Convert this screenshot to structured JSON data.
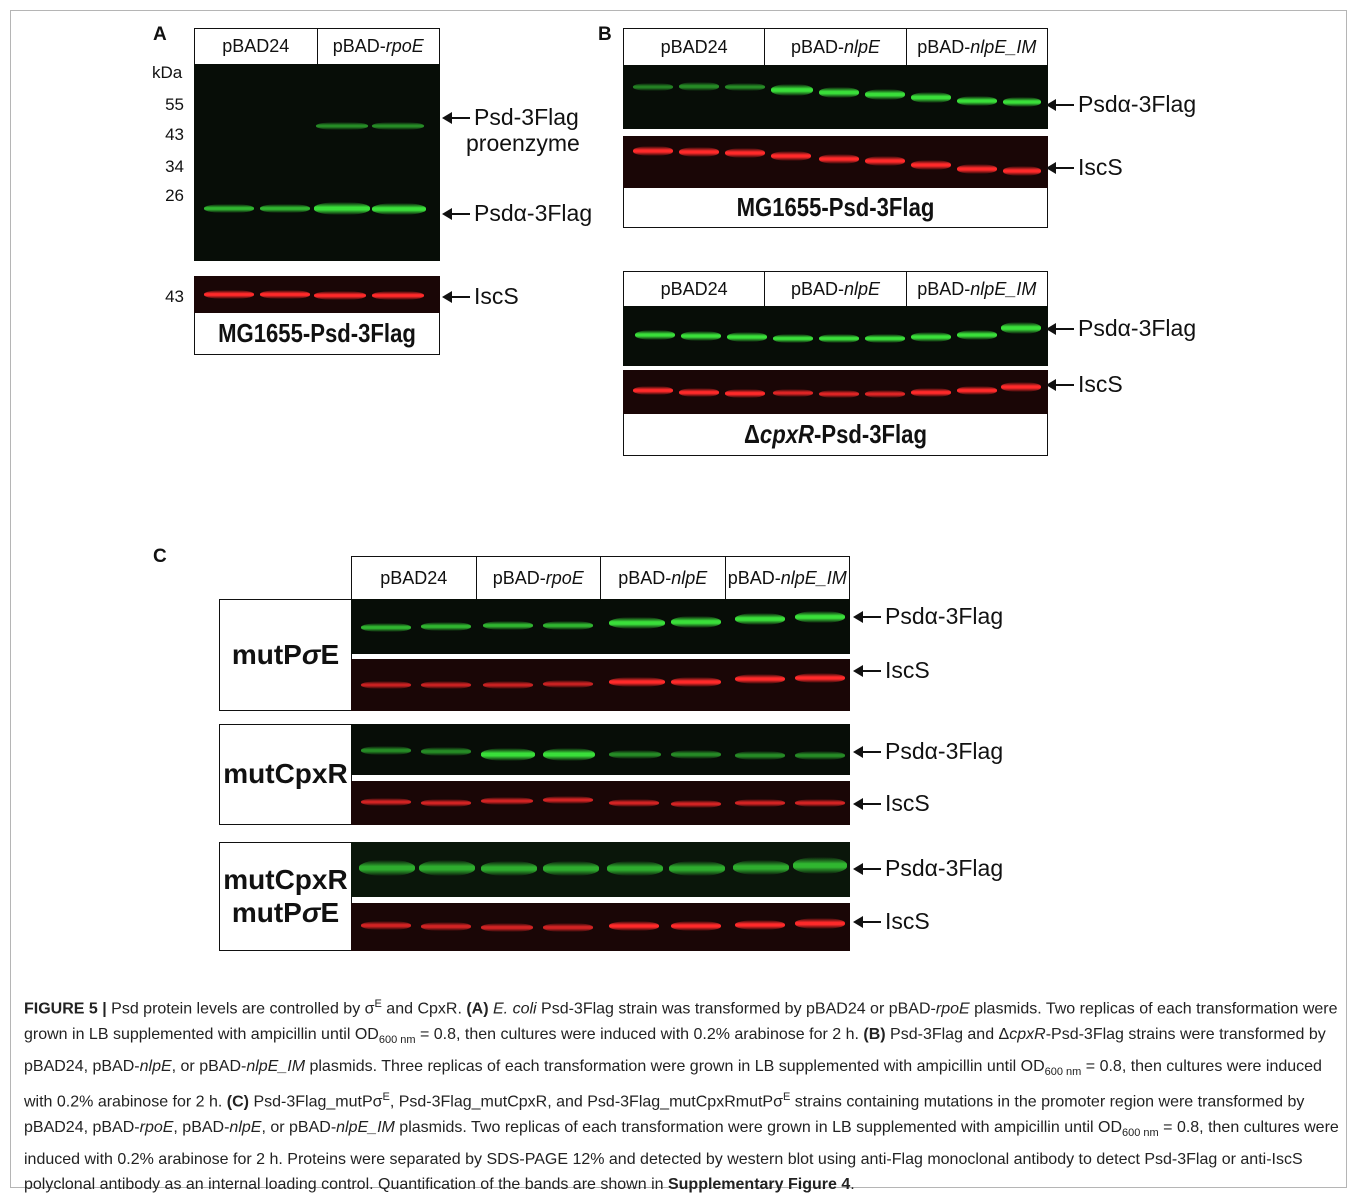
{
  "panels": {
    "a": {
      "label": "A",
      "kda_label": "kDa",
      "markers": [
        "55",
        "43",
        "34",
        "26"
      ],
      "lower_marker": "43",
      "lanes": [
        "pBAD24",
        "pBAD-",
        "rpoE"
      ],
      "arrow_labels": [
        "Psd-3Flag",
        "proenzyme",
        "Psdα-3Flag",
        "IscS"
      ],
      "strain": "MG1655-Psd-3Flag"
    },
    "b": {
      "label": "B",
      "top": {
        "lanes": [
          "pBAD24",
          "pBAD-",
          "nlpE",
          "pBAD-",
          "nlpE_IM"
        ],
        "arrow_labels": [
          "Psdα-3Flag",
          "IscS"
        ],
        "strain": "MG1655-Psd-3Flag"
      },
      "bottom": {
        "lanes": [
          "pBAD24",
          "pBAD-",
          "nlpE",
          "pBAD-",
          "nlpE_IM"
        ],
        "arrow_labels": [
          "Psdα-3Flag",
          "IscS"
        ],
        "strain_prefix": "Δ",
        "strain_italic": "cpxR",
        "strain_suffix": "-Psd-3Flag"
      }
    },
    "c": {
      "label": "C",
      "lanes": [
        "pBAD24",
        "pBAD-",
        "rpoE",
        "pBAD-",
        "nlpE",
        "pBAD-",
        "nlpE_IM"
      ],
      "rows": [
        {
          "name_parts": [
            "mutP",
            "σ",
            "E"
          ],
          "green": "Psdα-3Flag",
          "red": "IscS"
        },
        {
          "name": "mutCpxR",
          "green": "Psdα-3Flag",
          "red": "IscS"
        },
        {
          "name_line1": "mutCpxR",
          "name_line2_parts": [
            "mutP",
            "σ",
            "E"
          ],
          "green": "Psdα-3Flag",
          "red": "IscS"
        }
      ]
    }
  },
  "caption": {
    "figure_label": "FIGURE 5 |",
    "t1": " Psd protein levels are controlled by σ",
    "sup_E": "E",
    "t2": " and CpxR. ",
    "a_label": "(A)",
    "a_species": " E. coli",
    "a_text": " Psd-3Flag strain was transformed by pBAD24 or pBAD-",
    "a_rpoe": "rpoE",
    "a_text2": " plasmids. Two replicas of each transformation were grown in LB supplemented with ampicillin until OD",
    "od_sub": "600 nm",
    "a_text3": " = 0.8, then cultures were induced with 0.2% arabinose for 2 h. ",
    "b_label": "(B)",
    "b_text": " Psd-3Flag and Δ",
    "b_cpxr": "cpxR",
    "b_text2": "-Psd-3Flag strains were transformed by pBAD24, pBAD-",
    "b_nlpe": "nlpE",
    "b_text3": ", or pBAD-",
    "b_nlpeim": "nlpE_IM",
    "b_text4": " plasmids. Three replicas of each transformation were grown in LB supplemented with ampicillin until OD",
    "b_text5": " = 0.8, then cultures were induced with 0.2% arabinose for 2 h. ",
    "c_label": "(C)",
    "c_text": " Psd-3Flag_mutPσ",
    "c_text2": ", Psd-3Flag_mutCpxR, and Psd-3Flag_mutCpxRmutPσ",
    "c_text3": " strains containing mutations in the promoter region were transformed by pBAD24, pBAD-",
    "c_rpoe": "rpoE",
    "c_text4": ", pBAD-",
    "c_nlpe": "nlpE",
    "c_text5": ", or pBAD-",
    "c_nlpeim": "nlpE_IM",
    "c_text6": " plasmids. Two replicas of each transformation were grown in LB supplemented with ampicillin until OD",
    "c_text7": " = 0.8, then cultures were induced with 0.2% arabinose for 2 h. Proteins were separated by SDS-PAGE 12% and detected by western blot using anti-Flag monoclonal antibody to detect Psd-3Flag or anti-IscS polyclonal antibody as an internal loading control. Quantification of the bands are shown in ",
    "supp_ref": "Supplementary Figure 4",
    "end": "."
  },
  "colors": {
    "green_band": "#3adf3a",
    "red_band": "#ff2a2a",
    "green_bg": "#070d07",
    "red_bg": "#1a0606"
  }
}
